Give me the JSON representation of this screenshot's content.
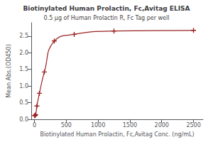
{
  "chart_data": {
    "type": "line",
    "title": "Biotinylated Human Prolactin, Fc,Avitag ELISA",
    "subtitle": "0.5 μg of Human Prolactin R, Fc Tag per well",
    "xlabel": "Biotinylated Human Prolactin, Fc,Avitag Conc. (ng/mL)",
    "ylabel": "Mean Abs.(OD450)",
    "x": [
      4.88,
      9.77,
      19.53,
      39.06,
      78.13,
      156.25,
      312.5,
      625,
      1250,
      2500
    ],
    "values": [
      0.108,
      0.115,
      0.14,
      0.4,
      0.78,
      1.42,
      2.35,
      2.55,
      2.65,
      2.67
    ],
    "color": "#9B2222",
    "marker": "plus",
    "xlim": [
      -50,
      2650
    ],
    "xticks": [
      0,
      500,
      1000,
      1500,
      2000,
      2500
    ],
    "ylim": [
      0.0,
      2.9
    ],
    "yticks": [
      {
        "value": 0.0,
        "label": "0.0"
      },
      {
        "value": 0.5,
        "label": "0.5"
      },
      {
        "value": 1.0,
        "label": "1.0"
      },
      {
        "value": 1.5,
        "label": "1.5"
      },
      {
        "value": 2.0,
        "label": "2.0"
      },
      {
        "value": 2.5,
        "label": "2.5"
      }
    ],
    "grid": false
  }
}
